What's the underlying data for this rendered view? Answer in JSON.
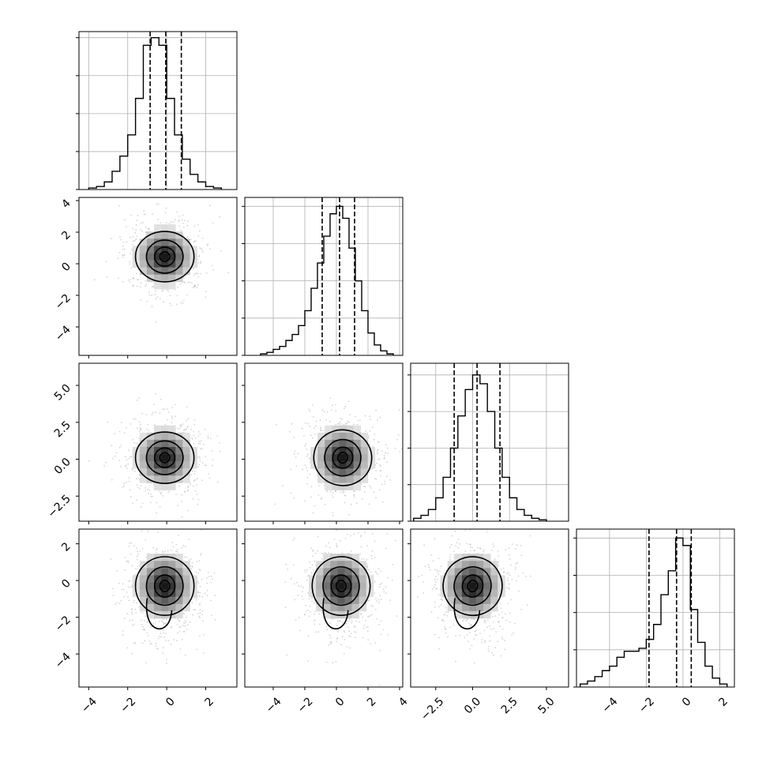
{
  "chart_data": {
    "type": "corner",
    "title": "",
    "variables": [
      {
        "range": [
          -4.5,
          3.6
        ],
        "ticks": [
          -4,
          -2,
          0,
          2
        ],
        "tick_labels": [
          "−4",
          "−2",
          "0",
          "2"
        ],
        "quantiles": [
          -0.85,
          -0.05,
          0.75
        ],
        "hist": {
          "edges": [
            -4.0,
            -3.6,
            -3.2,
            -2.8,
            -2.4,
            -2.0,
            -1.6,
            -1.2,
            -0.8,
            -0.4,
            0.0,
            0.4,
            0.8,
            1.2,
            1.6,
            2.0,
            2.4,
            2.8
          ],
          "counts": [
            0.01,
            0.02,
            0.05,
            0.12,
            0.22,
            0.36,
            0.6,
            0.95,
            1.0,
            0.95,
            0.6,
            0.36,
            0.2,
            0.1,
            0.05,
            0.02,
            0.01
          ],
          "ylim": [
            0,
            1.04
          ]
        }
      },
      {
        "range": [
          -5.8,
          4.2
        ],
        "ticks": [
          -4,
          -2,
          0,
          2,
          4
        ],
        "tick_labels": [
          "−4",
          "−2",
          "0",
          "2",
          "4"
        ],
        "quantiles": [
          -0.9,
          0.2,
          1.15
        ],
        "hist": {
          "edges": [
            -4.8,
            -4.4,
            -4.0,
            -3.6,
            -3.2,
            -2.8,
            -2.4,
            -2.0,
            -1.6,
            -1.2,
            -0.8,
            -0.4,
            0.0,
            0.4,
            0.8,
            1.2,
            1.6,
            2.0,
            2.4,
            2.8,
            3.2,
            3.6
          ],
          "counts": [
            0.01,
            0.02,
            0.04,
            0.06,
            0.1,
            0.14,
            0.2,
            0.3,
            0.45,
            0.62,
            0.8,
            0.95,
            1.0,
            0.92,
            0.72,
            0.5,
            0.3,
            0.15,
            0.07,
            0.03,
            0.01
          ],
          "ylim": [
            0,
            1.06
          ]
        }
      },
      {
        "range": [
          -4.2,
          6.5
        ],
        "ticks": [
          -2.5,
          0.0,
          2.5,
          5.0
        ],
        "tick_labels": [
          "−2.5",
          "0.0",
          "2.5",
          "5.0"
        ],
        "quantiles": [
          -1.25,
          0.3,
          1.85
        ],
        "hist": {
          "edges": [
            -4.0,
            -3.5,
            -3.0,
            -2.5,
            -2.0,
            -1.5,
            -1.0,
            -0.5,
            0.0,
            0.5,
            1.0,
            1.5,
            2.0,
            2.5,
            3.0,
            3.5,
            4.0,
            4.5,
            5.0
          ],
          "counts": [
            0.02,
            0.04,
            0.08,
            0.16,
            0.3,
            0.5,
            0.72,
            0.9,
            1.0,
            0.94,
            0.75,
            0.5,
            0.3,
            0.16,
            0.08,
            0.04,
            0.02,
            0.01
          ],
          "ylim": [
            0,
            1.08
          ]
        }
      },
      {
        "range": [
          -5.8,
          2.8
        ],
        "ticks": [
          -4,
          -2,
          0,
          2
        ],
        "tick_labels": [
          "−4",
          "−2",
          "0",
          "2"
        ],
        "quantiles": [
          -1.85,
          -0.35,
          0.45
        ],
        "hist": {
          "edges": [
            -5.6,
            -5.2,
            -4.8,
            -4.4,
            -4.0,
            -3.6,
            -3.2,
            -2.8,
            -2.4,
            -2.0,
            -1.6,
            -1.2,
            -0.8,
            -0.4,
            0.0,
            0.4,
            0.8,
            1.2,
            1.6,
            2.0,
            2.4
          ],
          "counts": [
            0.02,
            0.04,
            0.07,
            0.11,
            0.14,
            0.2,
            0.24,
            0.24,
            0.26,
            0.32,
            0.42,
            0.62,
            0.78,
            1.0,
            0.95,
            0.52,
            0.3,
            0.14,
            0.06,
            0.02
          ],
          "ylim": [
            0,
            1.06
          ]
        }
      }
    ],
    "pairs": [
      {
        "row": 1,
        "col": 0,
        "peak": [
          -0.1,
          0.45
        ],
        "spread": [
          0.9,
          1.1
        ],
        "corr": 0.0
      },
      {
        "row": 2,
        "col": 0,
        "peak": [
          -0.1,
          0.1
        ],
        "spread": [
          0.9,
          1.2
        ],
        "corr": 0.0
      },
      {
        "row": 2,
        "col": 1,
        "peak": [
          0.4,
          0.1
        ],
        "spread": [
          1.1,
          1.3
        ],
        "corr": -0.2
      },
      {
        "row": 3,
        "col": 0,
        "peak": [
          -0.1,
          -0.3
        ],
        "spread": [
          0.9,
          1.1
        ],
        "corr": 0.0
      },
      {
        "row": 3,
        "col": 1,
        "peak": [
          0.3,
          -0.3
        ],
        "spread": [
          1.1,
          1.1
        ],
        "corr": 0.1
      },
      {
        "row": 3,
        "col": 2,
        "peak": [
          0.0,
          -0.3
        ],
        "spread": [
          1.2,
          1.1
        ],
        "corr": -0.3
      }
    ],
    "grid": true,
    "colors": {
      "hist": "#000000",
      "contour": "#000000",
      "points": "#b0b0b0",
      "grid": "#b0b0b0"
    }
  }
}
